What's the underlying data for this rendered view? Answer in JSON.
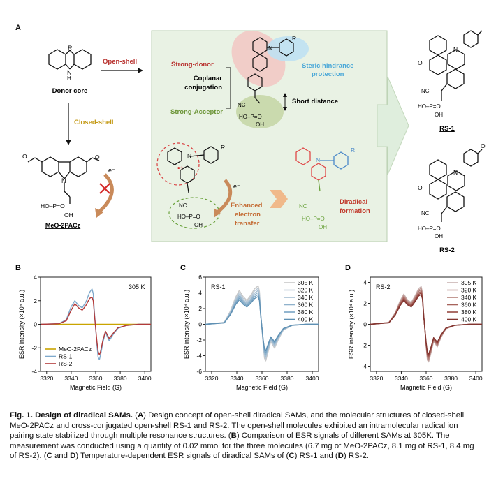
{
  "panel_a": {
    "letter": "A",
    "donor_core_label": "Donor core",
    "open_shell_label": "Open-shell",
    "closed_shell_label": "Closed-shell",
    "electron_label": "e⁻",
    "meo_label": "MeO-2PACz",
    "strong_donor": "Strong-donor",
    "coplanar_1": "Coplanar",
    "coplanar_2": "conjugation",
    "strong_acceptor": "Strong-Acceptor",
    "steric_1": "Steric hindrance",
    "steric_2": "protection",
    "short_distance": "Short distance",
    "enhanced_1": "Enhanced",
    "enhanced_2": "electron",
    "enhanced_3": "transfer",
    "diradical_1": "Diradical",
    "diradical_2": "formation",
    "rs1_label": "RS-1",
    "rs2_label": "RS-2",
    "atom_R": "R",
    "atom_N": "N",
    "atom_H": "H",
    "atom_O": "O",
    "cn": "NC",
    "cn2": "CN",
    "phos": "HO–P=O",
    "oh": "OH",
    "phos2": "HO–P=O"
  },
  "chart_data": [
    {
      "panel": "B",
      "type": "line",
      "annotation": "305 K",
      "xlabel": "Magnetic Field (G)",
      "ylabel": "ESR intensity (×10⁴ a.u.)",
      "xlim": [
        3315,
        3405
      ],
      "ylim": [
        -4,
        4
      ],
      "xticks": [
        3320,
        3340,
        3360,
        3380,
        3400
      ],
      "yticks": [
        -4,
        -2,
        0,
        2,
        4
      ],
      "legend_position": "bottom-left",
      "series": [
        {
          "name": "MeO-2PACz",
          "color": "#c9a400",
          "x": [
            3315,
            3405
          ],
          "y": [
            0,
            0
          ]
        },
        {
          "name": "RS-1",
          "color": "#7ea9cc",
          "x": [
            3315,
            3330,
            3336,
            3340,
            3343,
            3346,
            3349,
            3352,
            3355,
            3357,
            3358,
            3359,
            3361,
            3362,
            3363,
            3364,
            3366,
            3368,
            3371,
            3374,
            3378,
            3385,
            3395,
            3405
          ],
          "y": [
            0,
            0.05,
            0.4,
            1.5,
            2.0,
            1.6,
            1.4,
            1.9,
            2.7,
            3.0,
            2.6,
            1.0,
            -1.8,
            -2.8,
            -3.0,
            -2.6,
            -1.5,
            -0.7,
            -1.4,
            -0.9,
            -0.35,
            -0.1,
            0,
            0
          ]
        },
        {
          "name": "RS-2",
          "color": "#b23a3a",
          "x": [
            3315,
            3330,
            3336,
            3340,
            3343,
            3346,
            3349,
            3352,
            3355,
            3357,
            3358,
            3359,
            3361,
            3362,
            3363,
            3364,
            3366,
            3368,
            3371,
            3374,
            3378,
            3385,
            3395,
            3405
          ],
          "y": [
            0,
            0.05,
            0.3,
            1.2,
            1.75,
            1.4,
            1.2,
            1.6,
            2.2,
            2.3,
            2.0,
            0.8,
            -1.5,
            -2.3,
            -2.6,
            -2.3,
            -1.3,
            -0.6,
            -1.2,
            -0.8,
            -0.3,
            -0.1,
            0,
            0
          ]
        }
      ]
    },
    {
      "panel": "C",
      "type": "line",
      "annotation": "RS-1",
      "xlabel": "Magnetic Field (G)",
      "ylabel": "ESR intensity (×10⁴ a.u.)",
      "xlim": [
        3315,
        3405
      ],
      "ylim": [
        -6,
        6
      ],
      "xticks": [
        3320,
        3340,
        3360,
        3380,
        3400
      ],
      "yticks": [
        -6,
        -4,
        -2,
        0,
        2,
        4,
        6
      ],
      "legend_position": "top-right",
      "x": [
        3315,
        3330,
        3335,
        3339,
        3342,
        3345,
        3348,
        3351,
        3354,
        3357,
        3358,
        3359,
        3361,
        3362,
        3363,
        3365,
        3367,
        3370,
        3373,
        3377,
        3384,
        3395,
        3405
      ],
      "shape": [
        0,
        0.05,
        0.35,
        0.7,
        0.88,
        0.72,
        0.62,
        0.75,
        0.92,
        1.0,
        0.85,
        0.3,
        -0.55,
        -0.88,
        -0.95,
        -0.7,
        -0.45,
        -0.62,
        -0.4,
        -0.15,
        -0.03,
        0,
        0
      ],
      "series": [
        {
          "name": "305 K",
          "color": "#c8c8c8",
          "scale": 4.9
        },
        {
          "name": "320 K",
          "color": "#b9c8d6",
          "scale": 4.6
        },
        {
          "name": "340 K",
          "color": "#a5bed2",
          "scale": 4.3
        },
        {
          "name": "360 K",
          "color": "#8fb2cc",
          "scale": 4.05
        },
        {
          "name": "380 K",
          "color": "#78a4c4",
          "scale": 3.8
        },
        {
          "name": "400 K",
          "color": "#5f90b3",
          "scale": 3.55
        }
      ]
    },
    {
      "panel": "D",
      "type": "line",
      "annotation": "RS-2",
      "xlabel": "Magnetic Field (G)",
      "ylabel": "ESR intensity (×10⁴ a.u.)",
      "xlim": [
        3315,
        3405
      ],
      "ylim": [
        -4.5,
        4.5
      ],
      "xticks": [
        3320,
        3340,
        3360,
        3380,
        3400
      ],
      "yticks": [
        -4,
        -2,
        0,
        2,
        4
      ],
      "legend_position": "top-right",
      "x": [
        3315,
        3330,
        3335,
        3339,
        3342,
        3345,
        3348,
        3351,
        3354,
        3356,
        3357,
        3358,
        3360,
        3361,
        3362,
        3364,
        3366,
        3369,
        3372,
        3376,
        3383,
        3395,
        3405
      ],
      "shape": [
        0,
        0.05,
        0.3,
        0.62,
        0.8,
        0.65,
        0.58,
        0.75,
        0.95,
        1.0,
        0.85,
        0.3,
        -0.6,
        -0.95,
        -1.0,
        -0.75,
        -0.45,
        -0.6,
        -0.35,
        -0.12,
        -0.03,
        0,
        0
      ],
      "series": [
        {
          "name": "305 K",
          "color": "#c9b4b2",
          "scale": 3.6
        },
        {
          "name": "320 K",
          "color": "#c09a96",
          "scale": 3.45
        },
        {
          "name": "340 K",
          "color": "#b4807a",
          "scale": 3.3
        },
        {
          "name": "360 K",
          "color": "#a7635c",
          "scale": 3.15
        },
        {
          "name": "380 K",
          "color": "#974a43",
          "scale": 3.0
        },
        {
          "name": "400 K",
          "color": "#823530",
          "scale": 2.85
        }
      ]
    }
  ],
  "caption": {
    "title": "Fig. 1. Design of diradical SAMs.",
    "text_a_letter": "A",
    "text_a": "Design concept of open-shell diradical SAMs, and the molecular structures of closed-shell MeO-2PACz and cross-conjugated open-shell RS-1 and RS-2. The open-shell molecules exhibited an intramolecular radical ion pairing state stabilized through multiple resonance structures.",
    "text_b_letter": "B",
    "text_b": "Comparison of ESR signals of different SAMs at 305K. The measurement was conducted using a quantity of 0.02 mmol for the three molecules (6.7 mg of MeO-2PACz, 8.1 mg of RS-1, 8.4 mg of RS-2).",
    "text_cd_letters_1": "C",
    "text_cd_and": "and",
    "text_cd_letters_2": "D",
    "text_cd": "Temperature-dependent ESR signals of diradical SAMs of",
    "text_c_letter": "C",
    "text_c_name": "RS-1 and",
    "text_d_letter": "D",
    "text_d_name": "RS-2."
  }
}
